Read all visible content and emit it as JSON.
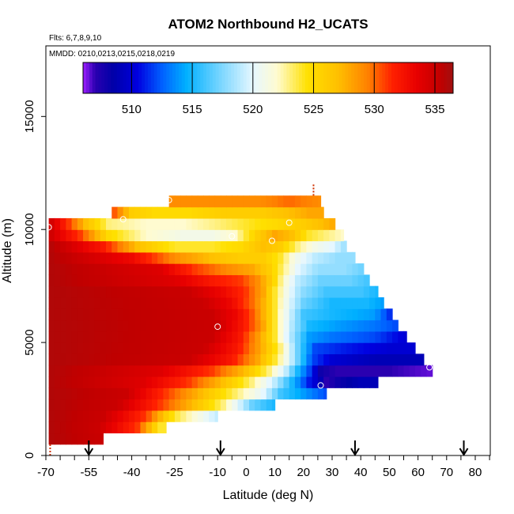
{
  "chart_data": {
    "type": "heatmap",
    "title": "ATOM2 Northbound H2_UCATS",
    "subtitle_flights": "Flts: 6,7,8,9,10",
    "subtitle_dates": "MMDD: 0210,0213,0215,0218,0219",
    "xlabel": "Latitude (deg N)",
    "ylabel": "Altitude (m)",
    "xlim": [
      -70,
      85
    ],
    "ylim": [
      0,
      17500
    ],
    "xticks": [
      -70,
      -55,
      -40,
      -25,
      -10,
      0,
      10,
      20,
      30,
      40,
      50,
      60,
      70,
      80
    ],
    "yticks": [
      0,
      5000,
      10000,
      15000
    ],
    "colorbar": {
      "min": 506,
      "max": 536.5,
      "ticks": [
        510,
        515,
        520,
        525,
        530,
        535
      ],
      "stops": [
        {
          "v": 506.0,
          "c": "#9e1fff"
        },
        {
          "v": 507.0,
          "c": "#2a00b0"
        },
        {
          "v": 508.5,
          "c": "#0000a8"
        },
        {
          "v": 510.5,
          "c": "#0000e0"
        },
        {
          "v": 512.5,
          "c": "#0060ff"
        },
        {
          "v": 514.5,
          "c": "#00b0ff"
        },
        {
          "v": 517.5,
          "c": "#80d8ff"
        },
        {
          "v": 520.0,
          "c": "#e6f7ff"
        },
        {
          "v": 522.0,
          "c": "#fffbd0"
        },
        {
          "v": 524.5,
          "c": "#ffe000"
        },
        {
          "v": 527.0,
          "c": "#ffc000"
        },
        {
          "v": 529.5,
          "c": "#ff8000"
        },
        {
          "v": 531.5,
          "c": "#ff2000"
        },
        {
          "v": 533.5,
          "c": "#e80000"
        },
        {
          "v": 535.5,
          "c": "#c00000"
        },
        {
          "v": 536.5,
          "c": "#a01010"
        }
      ]
    },
    "bands": [
      {
        "y0": 500,
        "y1": 1000,
        "xmin": -69,
        "xmax": -50,
        "anchors": [
          [
            -69,
            536
          ],
          [
            -50,
            535
          ]
        ]
      },
      {
        "y0": 1000,
        "y1": 1500,
        "xmin": -69,
        "xmax": -28,
        "anchors": [
          [
            -69,
            536
          ],
          [
            -52,
            535
          ],
          [
            -38,
            531
          ],
          [
            -30,
            524
          ]
        ]
      },
      {
        "y0": 1500,
        "y1": 2000,
        "xmin": -69,
        "xmax": -10,
        "anchors": [
          [
            -69,
            536
          ],
          [
            -50,
            535
          ],
          [
            -35,
            531
          ],
          [
            -25,
            524
          ],
          [
            -16,
            521
          ],
          [
            -10,
            519
          ]
        ]
      },
      {
        "y0": 2000,
        "y1": 2500,
        "xmin": -69,
        "xmax": 10,
        "anchors": [
          [
            -69,
            536
          ],
          [
            -45,
            535
          ],
          [
            -30,
            531
          ],
          [
            -18,
            527
          ],
          [
            -8,
            523
          ],
          [
            2,
            517
          ],
          [
            10,
            515
          ]
        ]
      },
      {
        "y0": 2500,
        "y1": 3000,
        "xmin": -69,
        "xmax": 28,
        "anchors": [
          [
            -69,
            536
          ],
          [
            -42,
            535
          ],
          [
            -28,
            531
          ],
          [
            -15,
            527
          ],
          [
            -3,
            523
          ],
          [
            6,
            520
          ],
          [
            12,
            516
          ],
          [
            20,
            514
          ],
          [
            28,
            512
          ]
        ]
      },
      {
        "y0": 3000,
        "y1": 3500,
        "xmin": -69,
        "xmax": 46,
        "anchors": [
          [
            -69,
            536
          ],
          [
            -36,
            534
          ],
          [
            -20,
            531
          ],
          [
            -8,
            527
          ],
          [
            2,
            523
          ],
          [
            10,
            519
          ],
          [
            16,
            515
          ],
          [
            22,
            511
          ],
          [
            26,
            509
          ],
          [
            28,
            507
          ],
          [
            32,
            508
          ],
          [
            40,
            509
          ],
          [
            46,
            509
          ]
        ]
      },
      {
        "y0": 3500,
        "y1": 4000,
        "xmin": -69,
        "xmax": 65,
        "anchors": [
          [
            -69,
            536
          ],
          [
            -30,
            534
          ],
          [
            -12,
            531
          ],
          [
            0,
            527
          ],
          [
            8,
            523
          ],
          [
            14,
            519
          ],
          [
            18,
            515
          ],
          [
            22,
            512
          ],
          [
            26,
            508
          ],
          [
            32,
            507
          ],
          [
            50,
            507
          ],
          [
            65,
            506.5
          ]
        ]
      },
      {
        "y0": 4000,
        "y1": 4500,
        "xmin": -69,
        "xmax": 62,
        "anchors": [
          [
            -69,
            536
          ],
          [
            -20,
            535
          ],
          [
            -5,
            532
          ],
          [
            4,
            528
          ],
          [
            10,
            524
          ],
          [
            15,
            520
          ],
          [
            19,
            516
          ],
          [
            23,
            512
          ],
          [
            30,
            510
          ],
          [
            45,
            509
          ],
          [
            55,
            509
          ],
          [
            62,
            509
          ]
        ]
      },
      {
        "y0": 4500,
        "y1": 5000,
        "xmin": -69,
        "xmax": 59,
        "anchors": [
          [
            -69,
            536
          ],
          [
            -15,
            535
          ],
          [
            -3,
            532
          ],
          [
            5,
            528
          ],
          [
            11,
            524
          ],
          [
            15,
            520
          ],
          [
            19,
            516
          ],
          [
            24,
            512
          ],
          [
            35,
            511
          ],
          [
            50,
            510
          ],
          [
            59,
            510
          ]
        ]
      },
      {
        "y0": 5000,
        "y1": 5500,
        "xmin": -69,
        "xmax": 56,
        "anchors": [
          [
            -69,
            536
          ],
          [
            -12,
            535
          ],
          [
            -2,
            532
          ],
          [
            5,
            528
          ],
          [
            10,
            524
          ],
          [
            14,
            520
          ],
          [
            18,
            517
          ],
          [
            22,
            514
          ],
          [
            30,
            513
          ],
          [
            45,
            512
          ],
          [
            56,
            510
          ]
        ]
      },
      {
        "y0": 5500,
        "y1": 6000,
        "xmin": -69,
        "xmax": 53,
        "anchors": [
          [
            -69,
            536
          ],
          [
            -10,
            535
          ],
          [
            -1,
            532
          ],
          [
            5,
            529
          ],
          [
            9,
            525
          ],
          [
            13,
            521
          ],
          [
            17,
            518
          ],
          [
            22,
            515
          ],
          [
            32,
            514
          ],
          [
            45,
            513
          ],
          [
            53,
            512
          ]
        ]
      },
      {
        "y0": 6000,
        "y1": 6500,
        "xmin": -69,
        "xmax": 51,
        "anchors": [
          [
            -69,
            536
          ],
          [
            -12,
            535
          ],
          [
            -3,
            533
          ],
          [
            3,
            530
          ],
          [
            8,
            526
          ],
          [
            12,
            522
          ],
          [
            16,
            519
          ],
          [
            20,
            516
          ],
          [
            30,
            515
          ],
          [
            45,
            514
          ],
          [
            51,
            511
          ]
        ]
      },
      {
        "y0": 6500,
        "y1": 7000,
        "xmin": -69,
        "xmax": 48,
        "anchors": [
          [
            -69,
            536
          ],
          [
            -15,
            535
          ],
          [
            -5,
            533
          ],
          [
            2,
            530
          ],
          [
            7,
            527
          ],
          [
            11,
            523
          ],
          [
            15,
            520
          ],
          [
            20,
            517
          ],
          [
            30,
            515
          ],
          [
            42,
            515
          ],
          [
            48,
            514
          ]
        ]
      },
      {
        "y0": 7000,
        "y1": 7500,
        "xmin": -69,
        "xmax": 46,
        "anchors": [
          [
            -69,
            536
          ],
          [
            -20,
            535
          ],
          [
            -8,
            533
          ],
          [
            0,
            531
          ],
          [
            6,
            528
          ],
          [
            10,
            524
          ],
          [
            14,
            521
          ],
          [
            19,
            518
          ],
          [
            28,
            516
          ],
          [
            40,
            516
          ],
          [
            46,
            515
          ]
        ]
      },
      {
        "y0": 7500,
        "y1": 8000,
        "xmin": -69,
        "xmax": 43,
        "anchors": [
          [
            -69,
            536
          ],
          [
            -25,
            534
          ],
          [
            -12,
            532
          ],
          [
            -2,
            531
          ],
          [
            4,
            529
          ],
          [
            9,
            526
          ],
          [
            13,
            522
          ],
          [
            18,
            519
          ],
          [
            26,
            517
          ],
          [
            36,
            517
          ],
          [
            43,
            516
          ]
        ]
      },
      {
        "y0": 8000,
        "y1": 8500,
        "xmin": -69,
        "xmax": 41,
        "anchors": [
          [
            -69,
            536
          ],
          [
            -30,
            534
          ],
          [
            -18,
            531
          ],
          [
            -6,
            529
          ],
          [
            2,
            528
          ],
          [
            8,
            526
          ],
          [
            13,
            523
          ],
          [
            18,
            520
          ],
          [
            25,
            518
          ],
          [
            34,
            518
          ],
          [
            41,
            517
          ]
        ]
      },
      {
        "y0": 8500,
        "y1": 9000,
        "xmin": -69,
        "xmax": 38,
        "anchors": [
          [
            -69,
            536
          ],
          [
            -40,
            533
          ],
          [
            -25,
            529
          ],
          [
            -12,
            527
          ],
          [
            -2,
            526
          ],
          [
            6,
            526
          ],
          [
            12,
            524
          ],
          [
            17,
            521
          ],
          [
            24,
            519
          ],
          [
            32,
            518
          ],
          [
            38,
            518
          ]
        ]
      },
      {
        "y0": 9000,
        "y1": 9500,
        "xmin": -69,
        "xmax": 35,
        "anchors": [
          [
            -69,
            536
          ],
          [
            -50,
            532
          ],
          [
            -38,
            527
          ],
          [
            -25,
            524
          ],
          [
            -12,
            524
          ],
          [
            -2,
            525
          ],
          [
            6,
            527
          ],
          [
            12,
            526
          ],
          [
            18,
            523
          ],
          [
            24,
            521
          ],
          [
            30,
            520
          ],
          [
            35,
            518
          ]
        ]
      },
      {
        "y0": 9500,
        "y1": 10000,
        "xmin": -69,
        "xmax": 34,
        "anchors": [
          [
            -69,
            535
          ],
          [
            -58,
            531
          ],
          [
            -48,
            525
          ],
          [
            -35,
            522
          ],
          [
            -22,
            521
          ],
          [
            -12,
            521
          ],
          [
            -4,
            522
          ],
          [
            4,
            526
          ],
          [
            10,
            528
          ],
          [
            16,
            527
          ],
          [
            22,
            524
          ],
          [
            28,
            523
          ],
          [
            34,
            522
          ]
        ]
      },
      {
        "y0": 10000,
        "y1": 10500,
        "xmin": -69,
        "xmax": 31,
        "anchors": [
          [
            -69,
            535
          ],
          [
            -62,
            531
          ],
          [
            -56,
            527
          ],
          [
            -48,
            523
          ],
          [
            -35,
            522
          ],
          [
            -22,
            522
          ],
          [
            -10,
            523
          ],
          [
            0,
            524
          ],
          [
            10,
            525
          ],
          [
            20,
            526
          ],
          [
            26,
            527
          ],
          [
            31,
            528
          ]
        ]
      },
      {
        "y0": 10500,
        "y1": 11000,
        "xmin": -47,
        "xmax": 27,
        "anchors": [
          [
            -47,
            531
          ],
          [
            -40,
            526
          ],
          [
            -32,
            525
          ],
          [
            -20,
            525
          ],
          [
            -8,
            526
          ],
          [
            5,
            526
          ],
          [
            15,
            527
          ],
          [
            22,
            528
          ],
          [
            27,
            528
          ]
        ]
      },
      {
        "y0": 11000,
        "y1": 11500,
        "xmin": -27,
        "xmax": 26,
        "anchors": [
          [
            -27,
            529
          ],
          [
            -10,
            529
          ],
          [
            5,
            529
          ],
          [
            15,
            530
          ],
          [
            26,
            529
          ]
        ]
      }
    ],
    "sample_points": [
      {
        "x": -69,
        "y": 10100
      },
      {
        "x": -43,
        "y": 10450
      },
      {
        "x": -27,
        "y": 11300
      },
      {
        "x": -5,
        "y": 9700
      },
      {
        "x": 9,
        "y": 9500
      },
      {
        "x": 15,
        "y": 10300
      },
      {
        "x": -10,
        "y": 5700
      },
      {
        "x": 26,
        "y": 3100
      },
      {
        "x": 64,
        "y": 3900
      }
    ],
    "dashed_markers": [
      {
        "x": -68.5,
        "y0": 0,
        "y1": 500
      },
      {
        "x": 23.5,
        "y0": 11500,
        "y1": 12000
      }
    ],
    "arrows": [
      -55,
      -9,
      38,
      76
    ],
    "grid": false,
    "legend": "colorbar-top"
  }
}
